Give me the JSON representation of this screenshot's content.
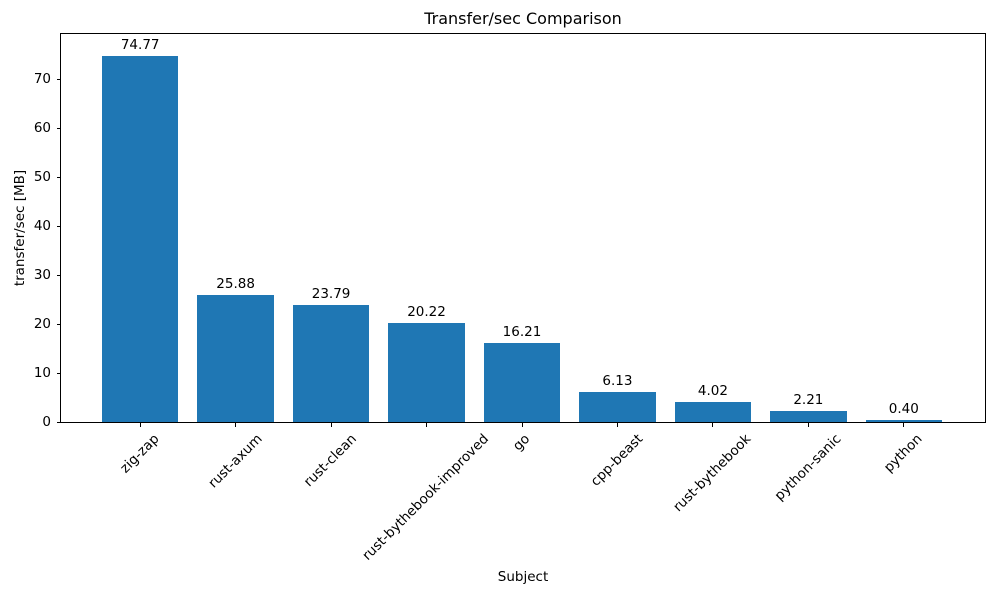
{
  "chart_data": {
    "type": "bar",
    "title": "Transfer/sec Comparison",
    "xlabel": "Subject",
    "ylabel": "transfer/sec [MB]",
    "categories": [
      "zig-zap",
      "rust-axum",
      "rust-clean",
      "rust-bythebook-improved",
      "go",
      "cpp-beast",
      "rust-bythebook",
      "python-sanic",
      "python"
    ],
    "values": [
      74.77,
      25.88,
      23.79,
      20.22,
      16.21,
      6.13,
      4.02,
      2.21,
      0.4
    ],
    "value_labels": [
      "74.77",
      "25.88",
      "23.79",
      "20.22",
      "16.21",
      "6.13",
      "4.02",
      "2.21",
      "0.40"
    ],
    "yticks": [
      0,
      10,
      20,
      30,
      40,
      50,
      60,
      70
    ],
    "ylim": [
      0,
      79.2
    ],
    "bar_color": "#1f77b4",
    "axis_color": "#000000",
    "grid": false,
    "legend_position": "none",
    "xtick_rotation_deg": 45
  }
}
